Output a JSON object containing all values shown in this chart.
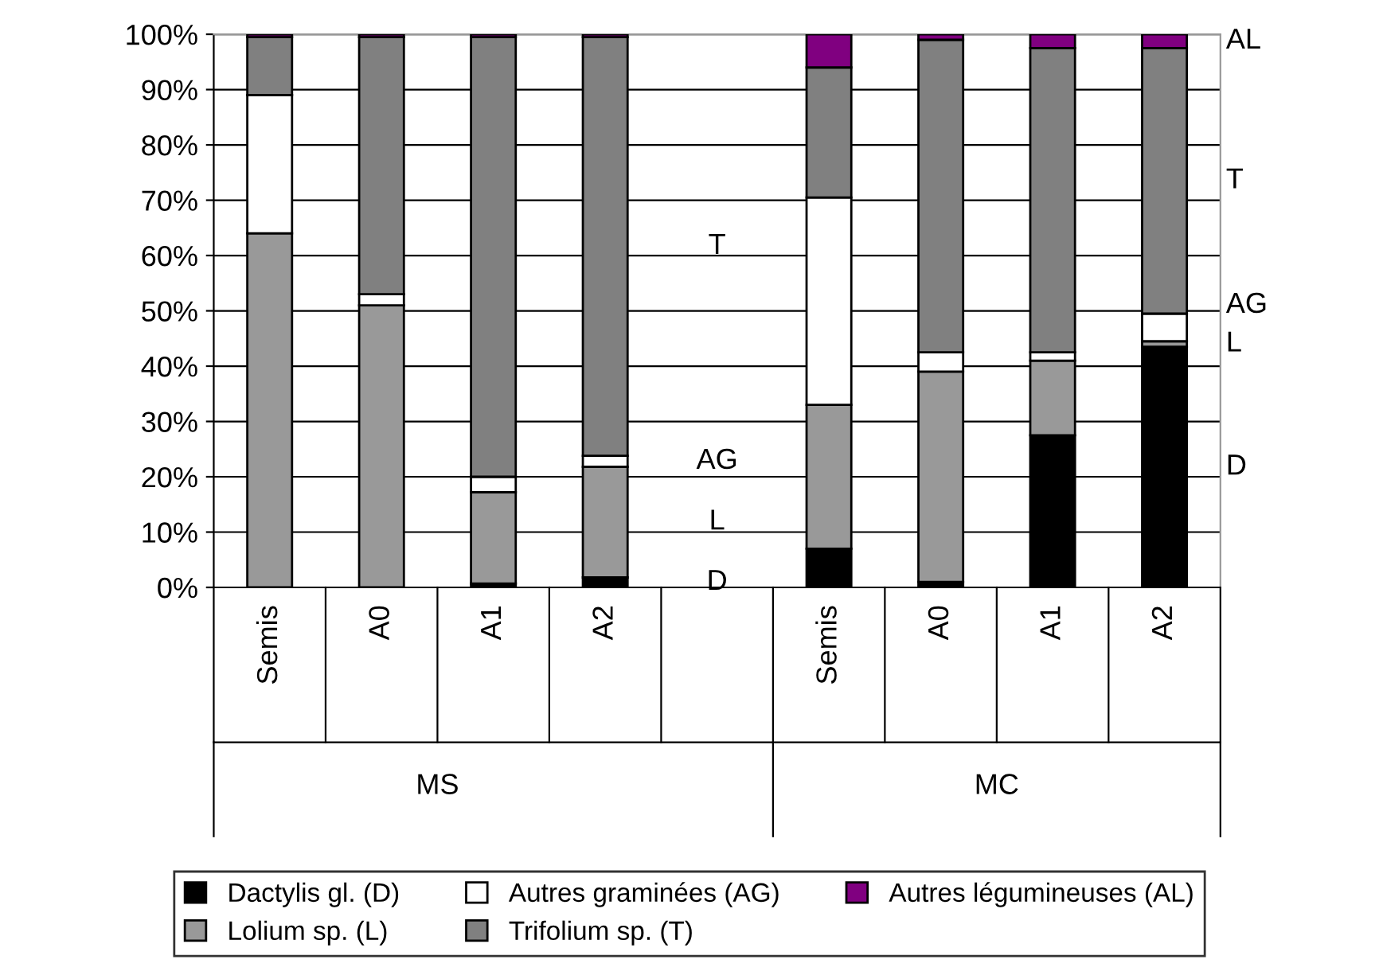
{
  "chart_data": {
    "type": "bar",
    "stacked": true,
    "categories": [
      "Semis",
      "A0",
      "A1",
      "A2",
      null,
      "Semis",
      "A0",
      "A1",
      "A2"
    ],
    "series": [
      {
        "name": "Dactylis gl. (D)",
        "color": "#000000",
        "values": [
          0,
          0,
          0.7,
          1.8,
          null,
          7,
          1,
          27.5,
          43.5
        ]
      },
      {
        "name": "Lolium sp. (L)",
        "color": "#999999",
        "values": [
          64,
          51,
          16.5,
          20,
          null,
          26,
          38,
          13.5,
          1
        ]
      },
      {
        "name": "Autres graminées (AG)",
        "color": "#ffffff",
        "values": [
          25,
          2,
          2.8,
          2,
          null,
          37.5,
          3.5,
          1.5,
          5
        ]
      },
      {
        "name": "Trifolium sp. (T)",
        "color": "#808080",
        "values": [
          10.5,
          46.5,
          79.5,
          75.7,
          null,
          23.5,
          56.5,
          55,
          48
        ]
      },
      {
        "name": "Autres légumineuses (AL)",
        "color": "#800080",
        "values": [
          0.5,
          0.5,
          0.5,
          0.5,
          null,
          6,
          1,
          2.5,
          2.5
        ]
      }
    ],
    "ylim": [
      0,
      100
    ],
    "yticks": [
      {
        "value": 0,
        "label": "0%"
      },
      {
        "value": 10,
        "label": "10%"
      },
      {
        "value": 20,
        "label": "20%"
      },
      {
        "value": 30,
        "label": "30%"
      },
      {
        "value": 40,
        "label": "40%"
      },
      {
        "value": 50,
        "label": "50%"
      },
      {
        "value": 60,
        "label": "60%"
      },
      {
        "value": 70,
        "label": "70%"
      },
      {
        "value": 80,
        "label": "80%"
      },
      {
        "value": 90,
        "label": "90%"
      },
      {
        "value": 100,
        "label": "100%"
      }
    ],
    "grid": "y",
    "legend": "bottom",
    "annotations": [
      "T",
      "AG",
      "L",
      "D",
      "AL",
      "T",
      "AG",
      "L",
      "D",
      "MS",
      "MC"
    ]
  }
}
